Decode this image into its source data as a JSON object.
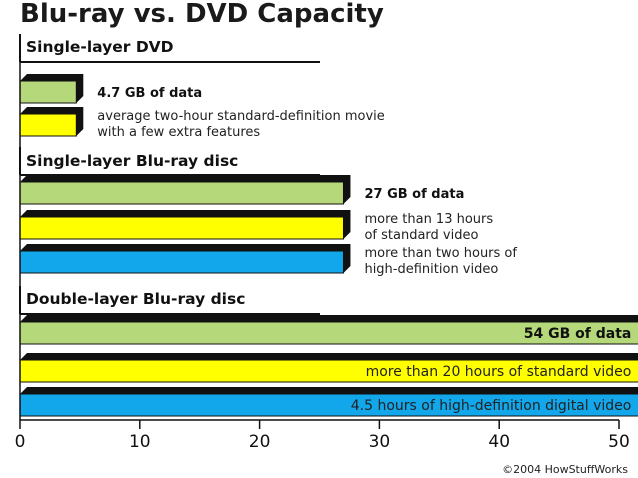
{
  "chart_data": {
    "type": "bar",
    "title": "Blu-ray vs. DVD Capacity",
    "xlim": [
      0,
      50
    ],
    "xticks": [
      "0",
      "10",
      "20",
      "30",
      "40",
      "50"
    ],
    "colors": {
      "data": "#b5d87a",
      "standard": "#ffff00",
      "hd": "#12a6ea",
      "shadow": "#111111"
    },
    "groups": [
      {
        "name": "Single-layer DVD",
        "bars": [
          {
            "kind": "data",
            "value": 4.7,
            "label": "4.7 GB of data",
            "bold": true
          },
          {
            "kind": "standard",
            "value": 4.7,
            "label": "average two-hour standard-definition movie\nwith a few extra features",
            "bold": false
          }
        ]
      },
      {
        "name": "Single-layer Blu-ray disc",
        "bars": [
          {
            "kind": "data",
            "value": 27,
            "label": "27 GB of data",
            "bold": true
          },
          {
            "kind": "standard",
            "value": 27,
            "label": "more than 13 hours\nof standard video",
            "bold": false
          },
          {
            "kind": "hd",
            "value": 27,
            "label": "more than two hours of\nhigh-definition video",
            "bold": false
          }
        ]
      },
      {
        "name": "Double-layer Blu-ray disc",
        "bars": [
          {
            "kind": "data",
            "value": 54,
            "label": "54 GB of data",
            "bold": true
          },
          {
            "kind": "standard",
            "value": 54,
            "label": "more than 20 hours of standard video",
            "bold": false
          },
          {
            "kind": "hd",
            "value": 54,
            "label": "4.5 hours of high-definition digital video",
            "bold": false
          }
        ]
      }
    ],
    "credit": "©2004 HowStuffWorks"
  }
}
